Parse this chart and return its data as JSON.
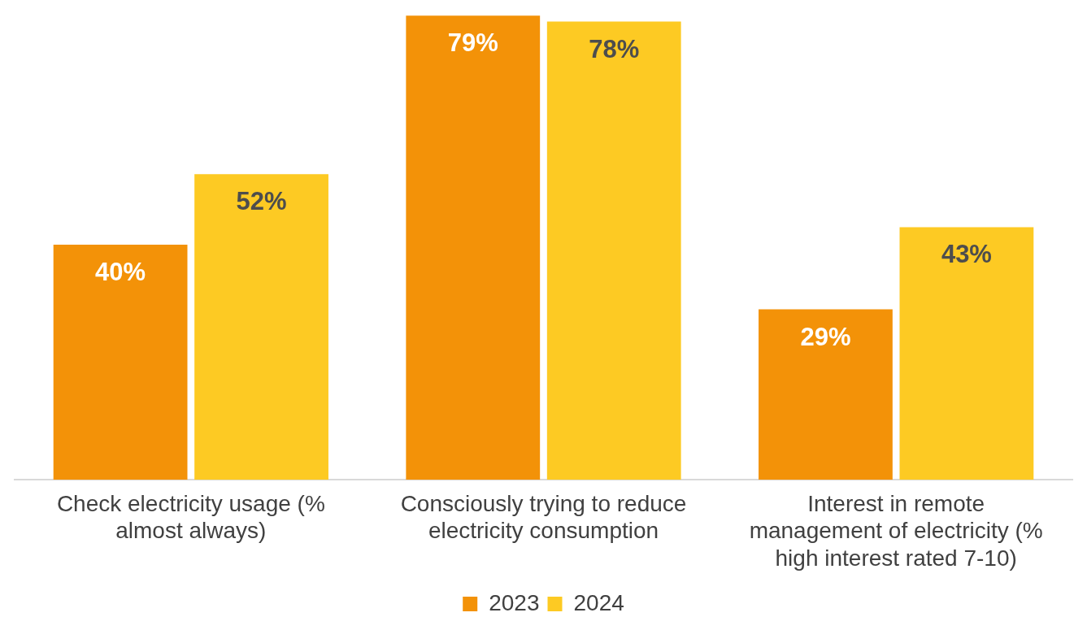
{
  "chart_data": {
    "type": "bar",
    "categories": [
      "Check electricity usage (% almost always)",
      "Consciously trying to reduce electricity consumption",
      "Interest in remote management of electricity (% high interest rated 7-10)"
    ],
    "series": [
      {
        "name": "2023",
        "color": "#f39208",
        "values": [
          40,
          79,
          29
        ],
        "value_labels": [
          "40%",
          "79%",
          "29%"
        ]
      },
      {
        "name": "2024",
        "color": "#fdca23",
        "values": [
          52,
          78,
          43
        ],
        "value_labels": [
          "52%",
          "78%",
          "43%"
        ]
      }
    ],
    "grid": false,
    "legend": "bottom"
  }
}
